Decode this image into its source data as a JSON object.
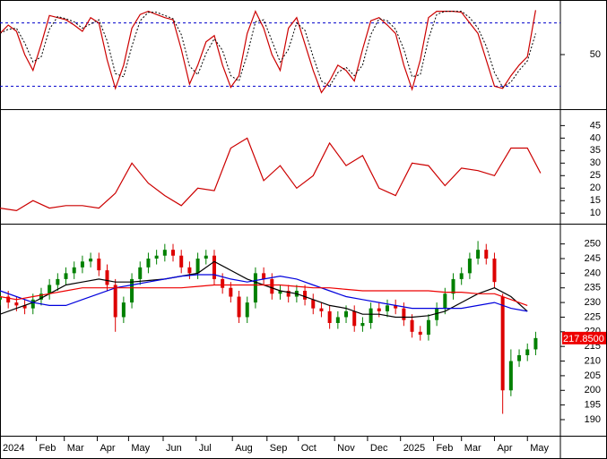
{
  "chart_data": [
    {
      "type": "line",
      "xlim": [
        0,
        340
      ],
      "ylim": [
        0,
        100
      ],
      "yticks": [
        50
      ],
      "levels": [
        80,
        20
      ],
      "level_color": "#0000cc",
      "x": [
        0,
        5,
        10,
        15,
        20,
        25,
        30,
        35,
        40,
        45,
        50,
        55,
        60,
        65,
        70,
        75,
        80,
        85,
        90,
        95,
        100,
        105,
        110,
        115,
        120,
        125,
        130,
        135,
        140,
        145,
        150,
        155,
        160,
        165,
        170,
        175,
        180,
        185,
        190,
        195,
        200,
        205,
        210,
        215,
        220,
        225,
        230,
        235,
        240,
        245,
        250,
        255,
        260,
        265,
        270,
        275,
        280,
        285,
        290,
        295,
        300,
        305,
        310,
        315,
        320,
        325
      ],
      "series": [
        {
          "color": "#cc0000",
          "values": [
            70,
            78,
            72,
            50,
            35,
            60,
            87,
            85,
            83,
            78,
            72,
            85,
            80,
            45,
            18,
            40,
            75,
            88,
            91,
            88,
            85,
            83,
            55,
            22,
            40,
            62,
            68,
            40,
            19,
            30,
            70,
            91,
            75,
            50,
            35,
            75,
            85,
            60,
            35,
            14,
            25,
            40,
            35,
            25,
            55,
            82,
            85,
            78,
            70,
            40,
            17,
            45,
            85,
            91,
            91,
            91,
            90,
            80,
            70,
            45,
            20,
            18,
            30,
            40,
            48,
            92
          ]
        },
        {
          "color": "#000000",
          "dash": true,
          "values": [
            70,
            74,
            75,
            61,
            43,
            48,
            74,
            86,
            84,
            81,
            75,
            79,
            83,
            63,
            32,
            29,
            58,
            82,
            90,
            90,
            87,
            84,
            69,
            39,
            31,
            51,
            65,
            54,
            30,
            25,
            50,
            81,
            83,
            63,
            43,
            55,
            80,
            73,
            48,
            25,
            20,
            33,
            38,
            30,
            40,
            69,
            84,
            82,
            74,
            55,
            29,
            31,
            65,
            88,
            91,
            91,
            91,
            85,
            75,
            58,
            33,
            19,
            24,
            35,
            44,
            70
          ]
        }
      ]
    },
    {
      "type": "line",
      "xlim": [
        0,
        340
      ],
      "ylim": [
        6.5,
        50.5
      ],
      "yticks": [
        10,
        15,
        20,
        25,
        30,
        35,
        40,
        45
      ],
      "x": [
        0,
        10,
        20,
        30,
        40,
        50,
        60,
        70,
        80,
        90,
        100,
        110,
        120,
        130,
        140,
        150,
        160,
        170,
        180,
        190,
        200,
        210,
        220,
        230,
        240,
        250,
        260,
        270,
        280,
        290,
        300,
        310,
        320,
        328
      ],
      "series": [
        {
          "color": "#cc0000",
          "values": [
            12,
            11,
            15,
            12,
            13,
            13,
            12,
            18,
            30,
            22,
            17,
            13,
            20,
            19,
            36,
            40,
            23,
            29,
            20,
            25,
            38,
            29,
            33,
            20,
            17,
            30,
            29,
            21,
            28,
            27,
            25,
            36,
            36,
            26
          ]
        }
      ]
    },
    {
      "type": "candlestick",
      "xlim": [
        0,
        340
      ],
      "ylim": [
        184.5,
        256
      ],
      "yticks": [
        190,
        195,
        200,
        205,
        210,
        215,
        220,
        225,
        230,
        235,
        240,
        245,
        250
      ],
      "up_color": "#008000",
      "down_color": "#dd0000",
      "xticks": [
        {
          "value": 0,
          "label": "2024"
        },
        {
          "value": 22,
          "label": "Feb"
        },
        {
          "value": 39,
          "label": "Mar"
        },
        {
          "value": 59,
          "label": "Apr"
        },
        {
          "value": 78,
          "label": "May"
        },
        {
          "value": 99,
          "label": "Jun"
        },
        {
          "value": 119,
          "label": "Jul"
        },
        {
          "value": 141,
          "label": "Aug"
        },
        {
          "value": 162,
          "label": "Sep"
        },
        {
          "value": 181,
          "label": "Oct"
        },
        {
          "value": 203,
          "label": "Nov"
        },
        {
          "value": 223,
          "label": "Dec"
        },
        {
          "value": 243,
          "label": "2025"
        },
        {
          "value": 263,
          "label": "Feb"
        },
        {
          "value": 280,
          "label": "Mar"
        },
        {
          "value": 300,
          "label": "Apr"
        },
        {
          "value": 320,
          "label": "May"
        }
      ],
      "x": [
        0,
        5,
        10,
        15,
        20,
        25,
        30,
        35,
        40,
        45,
        50,
        55,
        60,
        65,
        70,
        75,
        80,
        85,
        90,
        95,
        100,
        105,
        110,
        115,
        120,
        125,
        130,
        135,
        140,
        145,
        150,
        155,
        160,
        165,
        170,
        175,
        180,
        185,
        190,
        195,
        200,
        205,
        210,
        215,
        220,
        225,
        230,
        235,
        240,
        245,
        250,
        255,
        260,
        265,
        270,
        275,
        280,
        285,
        290,
        295,
        300,
        305,
        310,
        315,
        320,
        325
      ],
      "open": [
        231,
        232,
        230,
        229,
        228,
        231,
        233,
        236,
        238,
        240,
        242,
        244,
        245,
        241,
        236,
        225,
        230,
        238,
        242,
        245,
        246,
        248,
        246,
        242,
        240,
        245,
        246,
        238,
        235,
        232,
        225,
        230,
        240,
        238,
        233,
        234,
        232,
        234,
        231,
        228,
        227,
        223,
        225,
        227,
        222,
        223,
        228,
        227,
        229,
        228,
        224,
        220,
        219,
        224,
        228,
        233,
        238,
        240,
        245,
        248,
        245,
        232,
        200,
        210,
        212,
        214
      ],
      "high": [
        234,
        234,
        232,
        231,
        233,
        235,
        238,
        240,
        242,
        244,
        246,
        247,
        247,
        243,
        238,
        232,
        240,
        244,
        247,
        248,
        250,
        250,
        248,
        244,
        247,
        248,
        248,
        240,
        237,
        234,
        232,
        242,
        242,
        240,
        236,
        236,
        236,
        236,
        233,
        230,
        229,
        227,
        229,
        229,
        225,
        230,
        230,
        231,
        231,
        230,
        226,
        222,
        226,
        230,
        235,
        240,
        242,
        247,
        251,
        250,
        247,
        233,
        214,
        214,
        216,
        220
      ],
      "low": [
        229,
        228,
        227,
        226,
        226,
        229,
        231,
        234,
        236,
        238,
        240,
        242,
        239,
        234,
        220,
        223,
        228,
        236,
        240,
        243,
        244,
        244,
        240,
        238,
        238,
        243,
        236,
        233,
        230,
        223,
        223,
        228,
        236,
        231,
        231,
        230,
        230,
        229,
        226,
        225,
        221,
        221,
        223,
        220,
        220,
        221,
        225,
        225,
        226,
        222,
        218,
        217,
        217,
        222,
        226,
        231,
        236,
        238,
        243,
        243,
        235,
        192,
        198,
        208,
        210,
        212
      ],
      "close": [
        232,
        230,
        229,
        228,
        231,
        233,
        236,
        238,
        240,
        242,
        244,
        245,
        241,
        236,
        225,
        230,
        238,
        242,
        245,
        246,
        248,
        246,
        242,
        240,
        245,
        246,
        238,
        235,
        232,
        225,
        230,
        240,
        238,
        233,
        234,
        232,
        234,
        231,
        228,
        227,
        223,
        225,
        227,
        222,
        223,
        228,
        227,
        229,
        228,
        224,
        220,
        219,
        224,
        228,
        233,
        238,
        240,
        245,
        248,
        245,
        237,
        200,
        210,
        212,
        214,
        217.85
      ],
      "last_price": {
        "value": 217.85,
        "label": "217.8500"
      },
      "last_price_color": "#ee0000",
      "series": [
        {
          "color": "#000000",
          "x": [
            0,
            10,
            20,
            30,
            40,
            50,
            60,
            70,
            80,
            90,
            100,
            110,
            120,
            130,
            140,
            150,
            160,
            170,
            180,
            190,
            200,
            210,
            220,
            230,
            240,
            250,
            260,
            270,
            280,
            290,
            300,
            310,
            320
          ],
          "values": [
            226,
            228,
            230,
            233,
            236,
            237,
            238,
            237,
            237,
            237.5,
            238,
            239,
            240,
            244,
            241,
            238,
            236,
            234,
            233,
            231,
            229,
            228,
            226,
            226,
            225,
            225,
            225.5,
            227,
            230,
            233,
            235,
            232,
            227
          ]
        },
        {
          "color": "#0000dd",
          "x": [
            0,
            10,
            20,
            30,
            40,
            50,
            60,
            70,
            80,
            90,
            100,
            110,
            120,
            130,
            140,
            150,
            160,
            170,
            180,
            190,
            200,
            210,
            220,
            230,
            240,
            250,
            260,
            270,
            280,
            290,
            300,
            310,
            320
          ],
          "values": [
            234,
            232,
            230,
            229,
            229,
            231,
            233,
            235,
            236,
            237,
            238,
            239,
            239.5,
            239.5,
            238,
            237,
            238,
            239,
            238,
            236,
            234,
            232,
            231,
            230,
            229,
            228,
            228,
            228,
            228,
            229,
            230,
            228,
            227
          ]
        },
        {
          "color": "#ee0000",
          "x": [
            0,
            10,
            20,
            30,
            40,
            50,
            60,
            70,
            80,
            90,
            100,
            110,
            120,
            130,
            140,
            150,
            160,
            170,
            180,
            190,
            200,
            210,
            220,
            230,
            240,
            250,
            260,
            270,
            280,
            290,
            300,
            310,
            320
          ],
          "values": [
            232,
            231,
            232,
            233,
            234,
            235,
            235,
            235,
            235,
            235,
            235,
            235,
            235.5,
            236,
            236,
            236,
            236,
            236,
            235.5,
            235,
            235,
            234.5,
            234,
            234,
            234,
            234,
            234,
            233.5,
            233.5,
            233,
            233,
            231,
            229
          ]
        }
      ]
    }
  ]
}
